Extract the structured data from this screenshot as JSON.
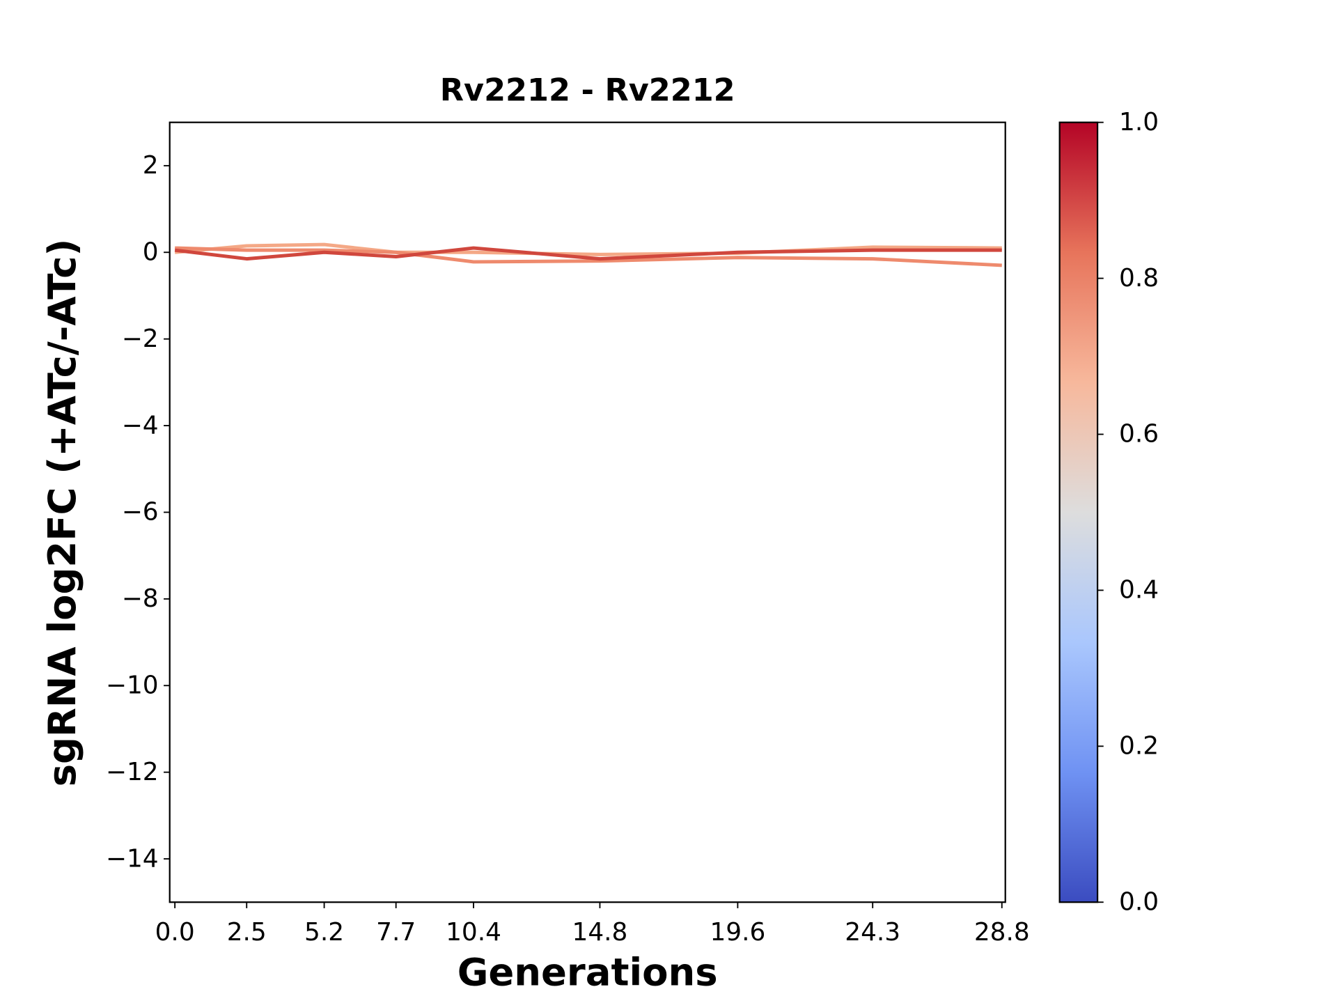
{
  "chart_data": {
    "type": "line",
    "title": "Rv2212 - Rv2212",
    "x_label": "Generations",
    "y_label": "sgRNA log2FC (+ATc/-ATc)",
    "x": [
      0.0,
      2.5,
      5.2,
      7.7,
      10.4,
      14.8,
      19.6,
      24.3,
      28.8
    ],
    "series": [
      {
        "color": "#f4a886",
        "values": [
          0.0,
          0.15,
          0.18,
          0.0,
          0.0,
          -0.05,
          -0.02,
          0.12,
          0.1
        ]
      },
      {
        "color": "#ee8a6d",
        "values": [
          0.1,
          0.05,
          0.05,
          0.0,
          -0.22,
          -0.2,
          -0.12,
          -0.15,
          -0.3
        ]
      },
      {
        "color": "#d0473d",
        "values": [
          0.05,
          -0.15,
          0.0,
          -0.1,
          0.1,
          -0.15,
          0.0,
          0.05,
          0.05
        ]
      }
    ],
    "xlim": [
      -0.18,
      28.92
    ],
    "xticks": [
      {
        "value": 0,
        "label": "0.0"
      },
      2.5,
      5.2,
      7.7,
      10.4,
      14.8,
      19.6,
      24.3,
      28.8
    ],
    "ylim": [
      -15,
      3
    ],
    "yticks": [
      {
        "value": -14,
        "label": "−14"
      },
      {
        "value": -12,
        "label": "−12"
      },
      {
        "value": -10,
        "label": "−10"
      },
      {
        "value": -8,
        "label": "−8"
      },
      {
        "value": -6,
        "label": "−6"
      },
      {
        "value": -4,
        "label": "−4"
      },
      {
        "value": -2,
        "label": "−2"
      },
      0,
      2
    ],
    "grid": false,
    "colorbar": {
      "lim": [
        0,
        1
      ],
      "ticks": [
        {
          "value": 0,
          "label": "0.0"
        },
        0.2,
        0.4,
        0.6,
        0.8,
        {
          "value": 1,
          "label": "1.0"
        }
      ],
      "colors": [
        "#3b4cc0",
        "#6f92f3",
        "#aac7fd",
        "#dddddd",
        "#f7b89c",
        "#e7745b",
        "#b40426"
      ]
    }
  }
}
